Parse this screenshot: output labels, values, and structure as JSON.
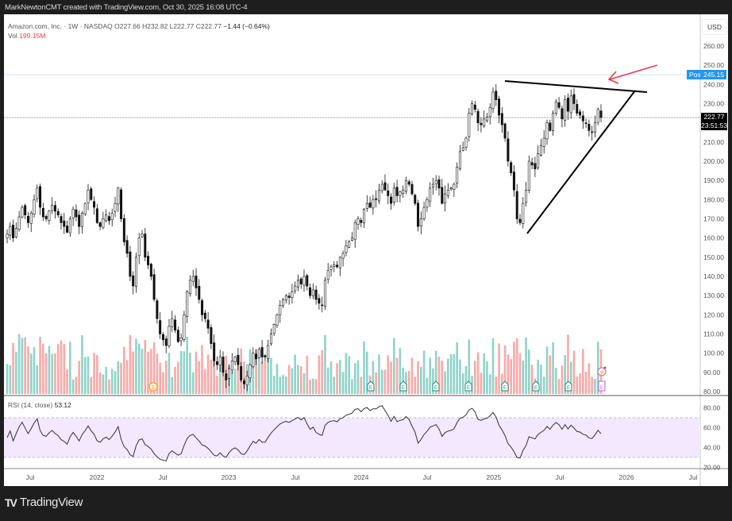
{
  "header": {
    "credit": "MarkNewtonCMT created with TradingView.com, Oct 30, 2025 16:08 UTC-4"
  },
  "legend": {
    "symbol": "Amazon.com, Inc. · 1W · NASDAQ",
    "open": "O227.66",
    "high": "H232.82",
    "low": "L222.77",
    "close": "C222.77",
    "change": "−1.44 (−0.64%)",
    "vol_label": "Vol",
    "vol_value": "199.15M"
  },
  "price_scale": {
    "currency": "USD",
    "ticks": [
      "260.00",
      "250.00",
      "240.00",
      "230.00",
      "210.00",
      "200.00",
      "190.00",
      "180.00",
      "170.00",
      "160.00",
      "150.00",
      "140.00",
      "130.00",
      "120.00",
      "110.00",
      "100.00",
      "90.00",
      "80.00"
    ],
    "post_label": "Post",
    "post_price": "245.15",
    "last_price": "222.77",
    "countdown": "23:51:53"
  },
  "rsi": {
    "label": "RSI (14, close)",
    "value": "53.12",
    "ticks": [
      "80.00",
      "60.00",
      "40.00",
      "20.00"
    ]
  },
  "time_axis": {
    "ticks": [
      "Jul",
      "2022",
      "Jul",
      "2023",
      "Jul",
      "2024",
      "Jul",
      "2025",
      "Jul",
      "2026",
      "Jul"
    ]
  },
  "branding": {
    "logo_mark": "TV",
    "logo_text": "TradingView"
  },
  "colors": {
    "up_volume": "#8fd3c9",
    "down_volume": "#f7a9a7",
    "post_line": "#2196f3",
    "rsi_band": "#f3e8fd",
    "arrow": "#f23645",
    "trendline": "#000000"
  },
  "chart_data": {
    "type": "candlestick",
    "title": "Amazon.com, Inc. · 1W · NASDAQ",
    "xlabel": "",
    "ylabel": "USD",
    "ylim": [
      80,
      260
    ],
    "x_ticks": [
      "Jul",
      "2022",
      "Jul",
      "2023",
      "Jul",
      "2024",
      "Jul",
      "2025",
      "Jul",
      "2026",
      "Jul"
    ],
    "last": {
      "open": 227.66,
      "high": 232.82,
      "low": 222.77,
      "close": 222.77,
      "change": -1.44,
      "change_pct": -0.64,
      "volume": "199.15M"
    },
    "post_market_price": 245.15,
    "closes": [
      162,
      166,
      160,
      165,
      171,
      176,
      172,
      168,
      173,
      180,
      186,
      176,
      171,
      170,
      174,
      177,
      174,
      172,
      168,
      166,
      163,
      170,
      175,
      171,
      166,
      173,
      178,
      185,
      180,
      176,
      168,
      166,
      170,
      172,
      169,
      173,
      178,
      186,
      170,
      158,
      152,
      140,
      135,
      150,
      160,
      162,
      150,
      146,
      140,
      128,
      118,
      110,
      107,
      104,
      114,
      118,
      112,
      106,
      108,
      120,
      132,
      138,
      140,
      134,
      128,
      120,
      118,
      113,
      105,
      96,
      94,
      98,
      90,
      86,
      92,
      96,
      98,
      94,
      86,
      84,
      88,
      94,
      100,
      97,
      102,
      98,
      98,
      104,
      110,
      115,
      120,
      125,
      128,
      130,
      129,
      132,
      135,
      138,
      136,
      140,
      135,
      130,
      133,
      128,
      126,
      125,
      138,
      143,
      145,
      146,
      145,
      150,
      152,
      156,
      158,
      160,
      168,
      170,
      168,
      175,
      178,
      176,
      180,
      180,
      185,
      188,
      185,
      182,
      178,
      186,
      182,
      184,
      185,
      190,
      188,
      183,
      178,
      166,
      170,
      176,
      180,
      186,
      188,
      190,
      186,
      178,
      183,
      185,
      186,
      188,
      197,
      205,
      207,
      212,
      225,
      230,
      227,
      220,
      219,
      222,
      223,
      228,
      236,
      232,
      224,
      219,
      212,
      200,
      194,
      185,
      170,
      168,
      178,
      185,
      200,
      198,
      196,
      204,
      208,
      212,
      220,
      216,
      225,
      231,
      228,
      222,
      232,
      226,
      234,
      230,
      225,
      224,
      221,
      220,
      216,
      215,
      220,
      227,
      222.77
    ],
    "rsi_approx_range": [
      25,
      75
    ],
    "annotations": [
      {
        "type": "trendline",
        "label": "descending resistance",
        "from": {
          "date": "2025-02",
          "price": 242
        },
        "to": {
          "date": "2026-01",
          "price": 236
        }
      },
      {
        "type": "trendline",
        "label": "rising support",
        "from": {
          "date": "2025-04",
          "price": 163
        },
        "to": {
          "date": "2025-12",
          "price": 237
        }
      },
      {
        "type": "arrow",
        "color": "red",
        "points_to": "apex of triangle"
      },
      {
        "type": "hline",
        "label": "Post",
        "price": 245.15
      },
      {
        "type": "hline",
        "label": "Last",
        "price": 222.77
      }
    ],
    "rsi": {
      "period": 14,
      "source": "close",
      "last": 53.12,
      "bands": [
        30,
        70
      ],
      "ylim": [
        20,
        85
      ]
    }
  }
}
